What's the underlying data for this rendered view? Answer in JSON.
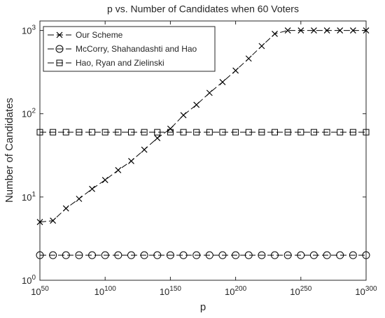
{
  "chart_data": {
    "type": "line",
    "title": "p vs. Number of Candidates when 60 Voters",
    "xlabel": "p",
    "ylabel": "Number of Candidates",
    "xscale": "log",
    "yscale": "log",
    "grid": false,
    "legend": "upper left",
    "x": [
      1e+50,
      1e+60,
      1e+70,
      1e+80,
      1e+90,
      1e+100,
      1e+110,
      1e+120,
      1e+130,
      1e+140,
      1e+150,
      1e+160,
      1e+170,
      1e+180,
      1e+190,
      1e+200,
      1e+210,
      1e+220,
      1e+230,
      1e+240,
      1e+250,
      1e+260,
      1e+270,
      1e+280,
      1e+290,
      1e+300
    ],
    "series": [
      {
        "name": "Our Scheme",
        "color": "#000000",
        "marker": "x",
        "values": [
          5,
          5.2,
          7.3,
          9.5,
          12.5,
          16,
          21,
          27,
          37,
          51,
          66,
          96,
          128,
          178,
          240,
          330,
          460,
          650,
          910,
          1000,
          1000,
          1000,
          1000,
          1000,
          1000,
          1000
        ]
      },
      {
        "name": "McCorry, Shahandashti and Hao",
        "color": "#000000",
        "marker": "o",
        "values": [
          2,
          2,
          2,
          2,
          2,
          2,
          2,
          2,
          2,
          2,
          2,
          2,
          2,
          2,
          2,
          2,
          2,
          2,
          2,
          2,
          2,
          2,
          2,
          2,
          2,
          2
        ]
      },
      {
        "name": "Hao, Ryan and Zielinski",
        "color": "#000000",
        "marker": "s",
        "values": [
          60,
          60,
          60,
          60,
          60,
          60,
          60,
          60,
          60,
          60,
          60,
          60,
          60,
          60,
          60,
          60,
          60,
          60,
          60,
          60,
          60,
          60,
          60,
          60,
          60,
          60
        ]
      }
    ],
    "xlim": [
      1e+50,
      1e+300
    ],
    "xticks": [
      {
        "value": 1e+50,
        "label": "10^50"
      },
      {
        "value": 1e+100,
        "label": "10^100"
      },
      {
        "value": 1e+150,
        "label": "10^150"
      },
      {
        "value": 1e+200,
        "label": "10^200"
      },
      {
        "value": 1e+250,
        "label": "10^250"
      },
      {
        "value": 1e+300,
        "label": "10^300"
      }
    ],
    "ylim": [
      1,
      1300
    ],
    "yticks": [
      {
        "value": 1,
        "label": "10^0"
      },
      {
        "value": 10,
        "label": "10^1"
      },
      {
        "value": 100,
        "label": "10^2"
      },
      {
        "value": 1000,
        "label": "10^3"
      }
    ]
  }
}
